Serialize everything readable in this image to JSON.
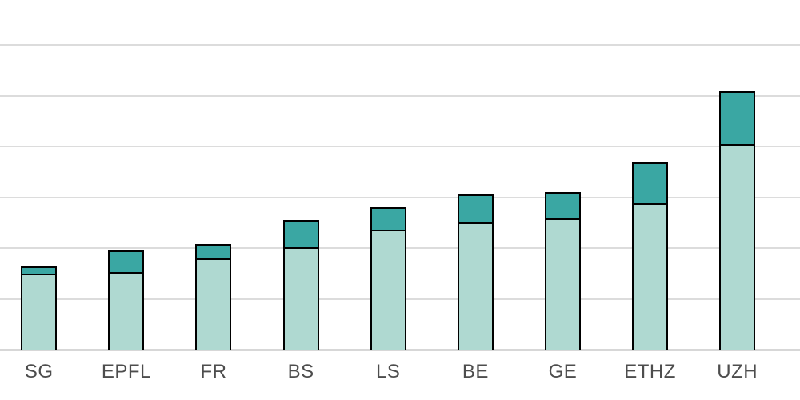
{
  "chart_data": {
    "type": "bar",
    "stacked": true,
    "orientation": "vertical",
    "title": "",
    "xlabel": "",
    "ylabel": "",
    "categories": [
      "SG",
      "EPFL",
      "FR",
      "BS",
      "LS",
      "BE",
      "GE",
      "ETHZ",
      "UZH"
    ],
    "series": [
      {
        "name": "base-segment-light-teal",
        "color": "#afd9d1",
        "values": [
          1.49,
          1.52,
          1.8,
          2.01,
          2.36,
          2.5,
          2.59,
          2.88,
          4.05
        ]
      },
      {
        "name": "top-segment-dark-teal",
        "color": "#3aa7a3",
        "values": [
          0.14,
          0.44,
          0.28,
          0.54,
          0.44,
          0.56,
          0.51,
          0.81,
          1.04
        ]
      }
    ],
    "totals": [
      1.63,
      1.96,
      2.08,
      2.55,
      2.8,
      3.06,
      3.1,
      3.69,
      5.09
    ],
    "value_units": "gridline intervals (no numeric y tick labels visible in image)",
    "ylim": [
      0,
      6.9
    ],
    "gridline_interval": 1,
    "grid": "horizontal",
    "legend_visible": false,
    "y_tick_labels_visible": false
  },
  "style": {
    "bar_outline_color": "#000000",
    "gridline_color": "#dcdcdc",
    "axis_line_color": "#d7d7d7",
    "label_color": "#4d4d4d",
    "background": "#ffffff"
  }
}
